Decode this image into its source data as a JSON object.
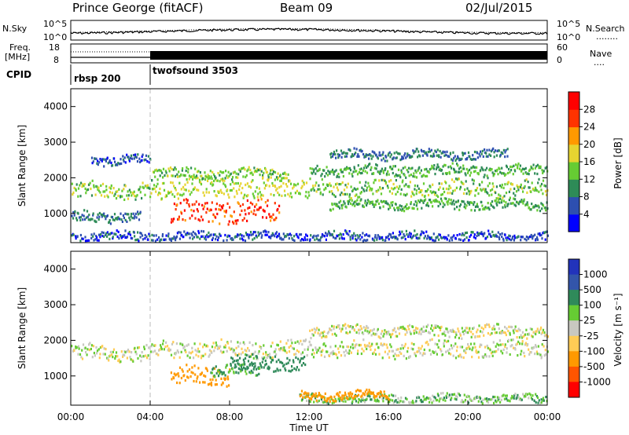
{
  "header": {
    "station": "Prince George (fitACF)",
    "beam": "Beam 09",
    "date": "02/Jul/2015"
  },
  "top_panels": {
    "nsky_label": "N.Sky",
    "nsearch_label": "N.Search",
    "nsearch_marker": "........",
    "freq_label_line1": "Freq.",
    "freq_label_line2": "[MHz]",
    "nave_label": "Nave",
    "nave_marker": "....",
    "cpid_label": "CPID",
    "left_ticks_noise": [
      "10^5",
      "10^0"
    ],
    "right_ticks_noise": [
      "10^5",
      "10^0"
    ],
    "left_ticks_freq": [
      "18",
      "8"
    ],
    "right_ticks_nave": [
      "60",
      "0"
    ],
    "cpid_segments": [
      {
        "start_hour": 0,
        "end_hour": 4,
        "label": "rbsp 200"
      },
      {
        "start_hour": 4,
        "end_hour": 24,
        "label": "twofsound 3503"
      }
    ]
  },
  "power_colorbar": {
    "label": "Power [dB]",
    "ticks": [
      "28",
      "24",
      "20",
      "16",
      "12",
      "8",
      "4"
    ],
    "colors": [
      "#0000ff",
      "#2d4fb0",
      "#2e8b57",
      "#66cc33",
      "#e6d430",
      "#ff9900",
      "#ff3300",
      "#ff0000"
    ]
  },
  "velocity_colorbar": {
    "label": "Velocity [m s⁻¹]",
    "ticks": [
      "1000",
      "500",
      "100",
      "25",
      "-25",
      "-100",
      "-500",
      "-1000"
    ],
    "colors": [
      "#2233bb",
      "#3355aa",
      "#2f8a5a",
      "#66cc33",
      "#c8c8c0",
      "#ffcc55",
      "#ff9900",
      "#ff5500",
      "#ff0000"
    ]
  },
  "chart_data": [
    {
      "type": "heatmap",
      "name": "Power",
      "ylabel": "Slant Range [km]",
      "xlabel": "",
      "xlim": [
        0,
        24
      ],
      "ylim": [
        180,
        4500
      ],
      "y_ticks": [
        "1000",
        "2000",
        "3000",
        "4000"
      ],
      "x_ticks": [],
      "vertical_marker_hour": 4,
      "bands": [
        {
          "t0": 0.0,
          "t1": 4.0,
          "r_center": 1650,
          "width": 220,
          "value": 14
        },
        {
          "t0": 0.0,
          "t1": 3.5,
          "r_center": 900,
          "width": 150,
          "value": 8
        },
        {
          "t0": 1.0,
          "t1": 4.0,
          "r_center": 2500,
          "width": 120,
          "value": 6
        },
        {
          "t0": 4.0,
          "t1": 12.0,
          "r_center": 1700,
          "width": 260,
          "value": 16
        },
        {
          "t0": 5.0,
          "t1": 10.5,
          "r_center": 1050,
          "width": 300,
          "value": 26
        },
        {
          "t0": 4.0,
          "t1": 11.0,
          "r_center": 2100,
          "width": 150,
          "value": 14
        },
        {
          "t0": 12.0,
          "t1": 24.0,
          "r_center": 1700,
          "width": 220,
          "value": 14
        },
        {
          "t0": 12.0,
          "t1": 24.0,
          "r_center": 2200,
          "width": 150,
          "value": 12
        },
        {
          "t0": 13.0,
          "t1": 24.0,
          "r_center": 1250,
          "width": 130,
          "value": 12
        },
        {
          "t0": 13.0,
          "t1": 22.0,
          "r_center": 2650,
          "width": 120,
          "value": 8
        },
        {
          "t0": 0.0,
          "t1": 24.0,
          "r_center": 350,
          "width": 120,
          "value": 6
        }
      ]
    },
    {
      "type": "heatmap",
      "name": "Velocity",
      "ylabel": "Slant Range [km]",
      "xlabel": "Time UT",
      "xlim": [
        0,
        24
      ],
      "ylim": [
        180,
        4500
      ],
      "y_ticks": [
        "1000",
        "2000",
        "3000",
        "4000"
      ],
      "x_ticks": [
        "00:00",
        "04:00",
        "08:00",
        "12:00",
        "16:00",
        "20:00",
        "00:00"
      ],
      "vertical_marker_hour": 4,
      "bands": [
        {
          "t0": 0.0,
          "t1": 4.0,
          "r_center": 1650,
          "width": 220,
          "value": 0
        },
        {
          "t0": 4.0,
          "t1": 12.0,
          "r_center": 1750,
          "width": 220,
          "value": 0
        },
        {
          "t0": 12.0,
          "t1": 24.0,
          "r_center": 1750,
          "width": 220,
          "value": 0
        },
        {
          "t0": 12.0,
          "t1": 24.0,
          "r_center": 2250,
          "width": 150,
          "value": 0
        },
        {
          "t0": 5.0,
          "t1": 8.0,
          "r_center": 1000,
          "width": 260,
          "value": -300
        },
        {
          "t0": 8.0,
          "t1": 11.8,
          "r_center": 1350,
          "width": 220,
          "value": 400
        },
        {
          "t0": 7.0,
          "t1": 9.5,
          "r_center": 1150,
          "width": 150,
          "value": 120
        },
        {
          "t0": 11.5,
          "t1": 24.0,
          "r_center": 350,
          "width": 120,
          "value": 60
        },
        {
          "t0": 11.5,
          "t1": 16.0,
          "r_center": 450,
          "width": 120,
          "value": -200
        }
      ]
    }
  ]
}
